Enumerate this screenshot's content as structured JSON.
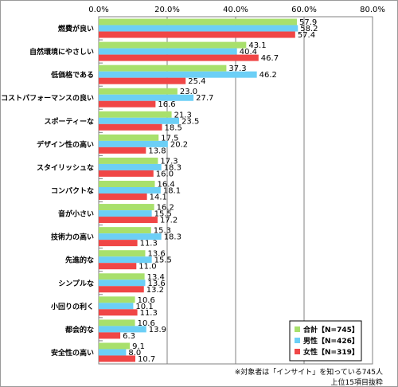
{
  "chart_data": {
    "type": "bar",
    "orientation": "horizontal",
    "categories": [
      "燃費が良い",
      "自然環境にやさしい",
      "低価格である",
      "コストパフォーマンスの良い",
      "スポーティーな",
      "デザイン性の高い",
      "スタイリッシュな",
      "コンパクトな",
      "音が小さい",
      "技術力の高い",
      "先進的な",
      "シンプルな",
      "小回りの利く",
      "都会的な",
      "安全性の高い"
    ],
    "series": [
      {
        "name": "合計【N=745】",
        "color": "#a8e06c",
        "values": [
          57.9,
          43.1,
          37.3,
          23.0,
          21.3,
          17.5,
          17.3,
          16.4,
          16.2,
          15.3,
          13.6,
          13.4,
          10.6,
          10.6,
          9.1
        ]
      },
      {
        "name": "男性【N=426】",
        "color": "#6ccff6",
        "values": [
          58.2,
          40.4,
          46.2,
          27.7,
          23.5,
          20.2,
          18.3,
          18.1,
          15.5,
          18.3,
          15.5,
          13.6,
          10.1,
          13.9,
          8.0
        ]
      },
      {
        "name": "女性【N=319】",
        "color": "#f04646",
        "values": [
          57.4,
          46.7,
          25.4,
          16.6,
          18.5,
          13.8,
          16.0,
          14.1,
          17.2,
          11.3,
          11.0,
          13.2,
          11.3,
          6.3,
          10.7
        ]
      }
    ],
    "xlim": [
      0,
      80
    ],
    "xticks": [
      "0.0%",
      "20.0%",
      "40.0%",
      "60.0%",
      "80.0%"
    ],
    "gridlines": true,
    "legend": "bottom-right"
  },
  "notes": {
    "line1": "※対象者は「インサイト」を知っている745人",
    "line2": "上位15項目抜粋"
  }
}
